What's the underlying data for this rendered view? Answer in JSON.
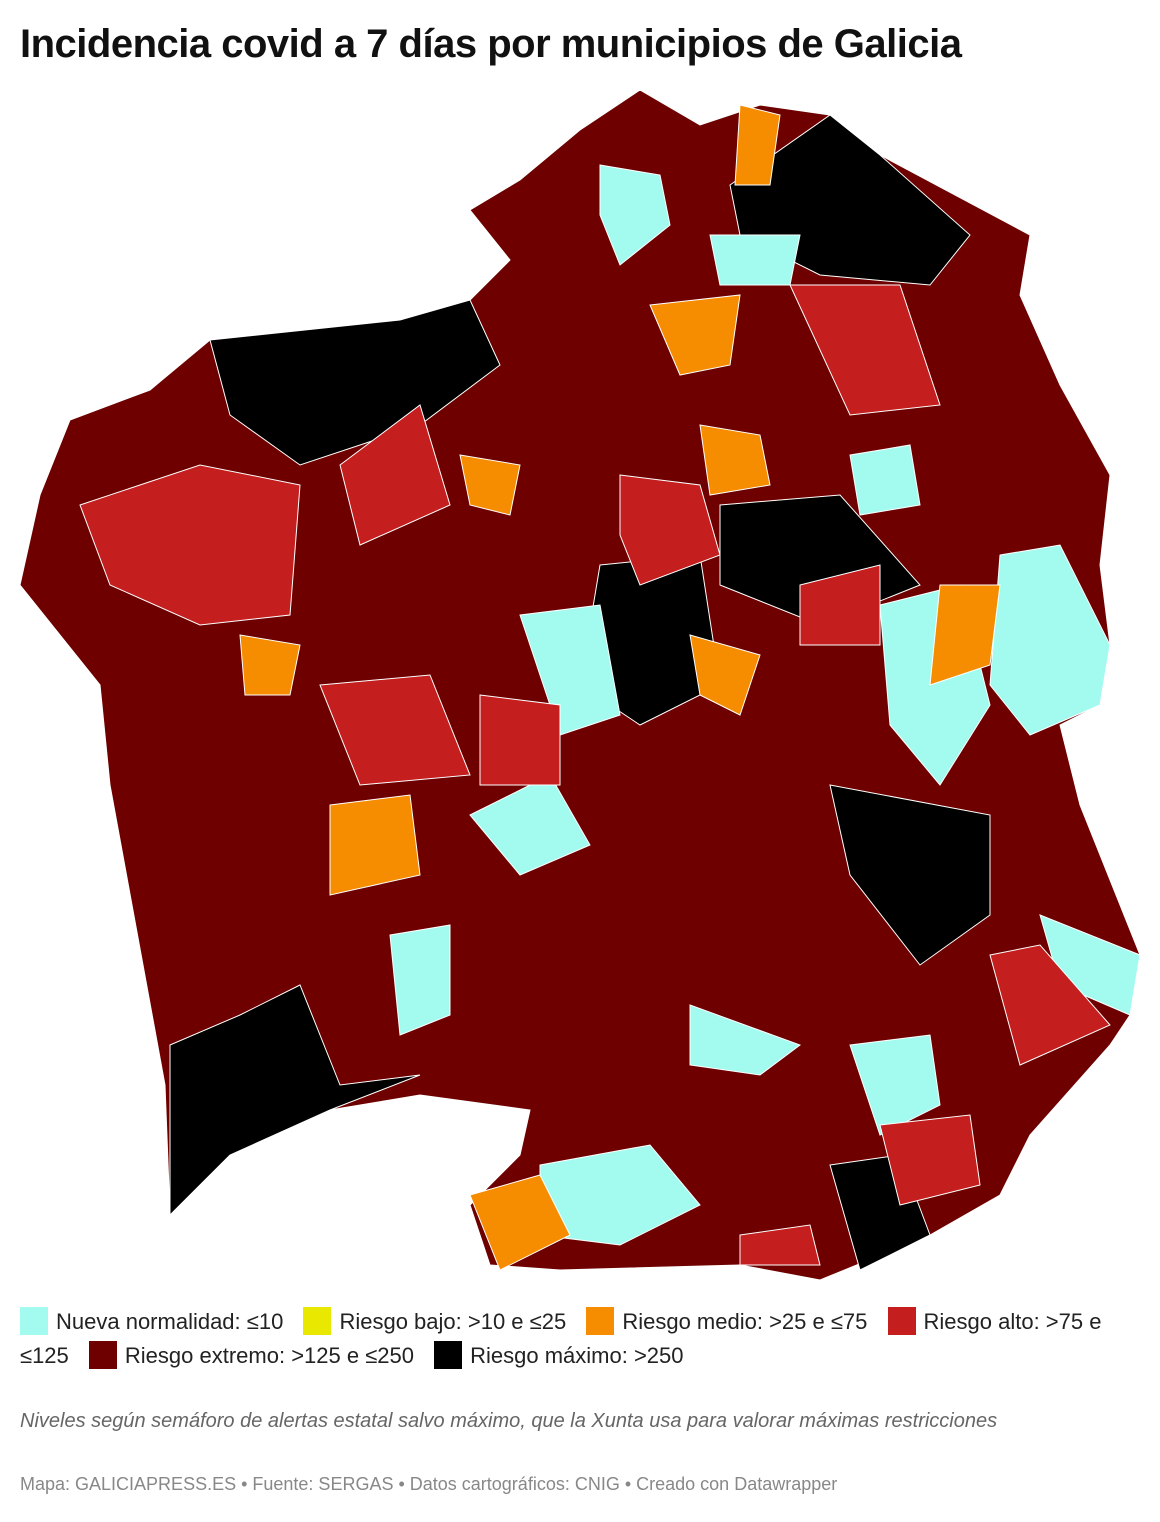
{
  "title": "Incidencia covid a 7 días por municipios de Galicia",
  "legend": [
    {
      "label": "Nueva normalidad: ≤10",
      "color": "#a3fbf0"
    },
    {
      "label": "Riesgo bajo: >10 e ≤25",
      "color": "#e8e800"
    },
    {
      "label": "Riesgo medio: >25 e ≤75",
      "color": "#f68c00"
    },
    {
      "label": "Riesgo alto: >75 e ≤125",
      "color": "#c41e1e"
    },
    {
      "label": "Riesgo extremo: >125 e ≤250",
      "color": "#6e0000"
    },
    {
      "label": "Riesgo máximo: >250",
      "color": "#000000"
    }
  ],
  "note": "Niveles según semáforo de alertas estatal salvo máximo, que la Xunta usa para valorar máximas restricciones",
  "source": "Mapa: GALICIAPRESS.ES • Fuente: SERGAS • Datos cartográficos: CNIG • Creado con Datawrapper"
}
